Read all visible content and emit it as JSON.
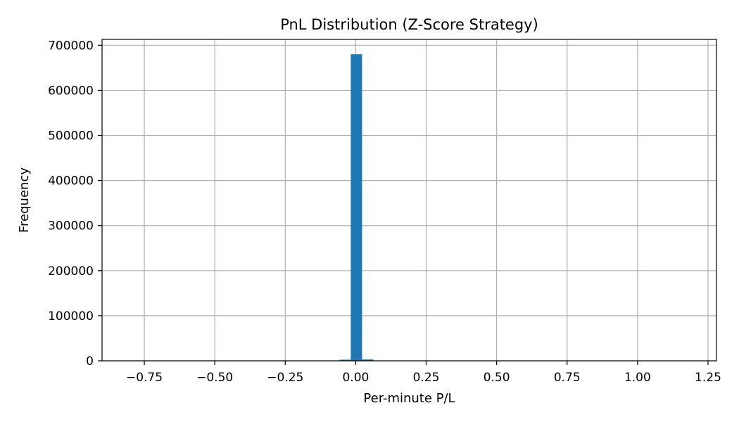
{
  "chart_data": {
    "type": "bar",
    "title": "PnL Distribution (Z-Score Strategy)",
    "xlabel": "Per-minute P/L",
    "ylabel": "Frequency",
    "xlim": [
      -0.9,
      1.28
    ],
    "ylim": [
      0,
      713000
    ],
    "grid": true,
    "bar_color": "#1f77b4",
    "x_ticks": [
      {
        "value": -0.75,
        "label": "−0.75"
      },
      {
        "value": -0.5,
        "label": "−0.50"
      },
      {
        "value": -0.25,
        "label": "−0.25"
      },
      {
        "value": 0.0,
        "label": "0.00"
      },
      {
        "value": 0.25,
        "label": "0.25"
      },
      {
        "value": 0.5,
        "label": "0.50"
      },
      {
        "value": 0.75,
        "label": "0.75"
      },
      {
        "value": 1.0,
        "label": "1.00"
      },
      {
        "value": 1.25,
        "label": "1.25"
      }
    ],
    "y_ticks": [
      {
        "value": 0,
        "label": "0"
      },
      {
        "value": 100000,
        "label": "100000"
      },
      {
        "value": 200000,
        "label": "200000"
      },
      {
        "value": 300000,
        "label": "300000"
      },
      {
        "value": 400000,
        "label": "400000"
      },
      {
        "value": 500000,
        "label": "500000"
      },
      {
        "value": 600000,
        "label": "600000"
      },
      {
        "value": 700000,
        "label": "700000"
      }
    ],
    "bins": [
      {
        "x0": -0.0575,
        "x1": -0.0175,
        "count": 2500
      },
      {
        "x0": -0.0175,
        "x1": 0.0225,
        "count": 680000
      },
      {
        "x0": 0.0225,
        "x1": 0.0625,
        "count": 3000
      }
    ]
  }
}
